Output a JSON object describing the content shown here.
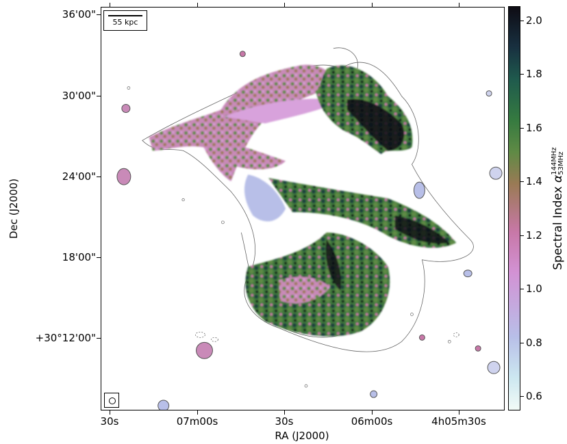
{
  "axes": {
    "xlabel": "RA (J2000)",
    "ylabel": "Dec (J2000)",
    "x_ticks": [
      "30s",
      "07m00s",
      "30s",
      "06m00s",
      "4h05m30s"
    ],
    "y_ticks": [
      "36'00\"",
      "30'00\"",
      "24'00\"",
      "18'00\"",
      "+30°12'00\""
    ]
  },
  "scalebar": {
    "label": "55 kpc"
  },
  "colorbar": {
    "label_prefix": "Spectral Index ",
    "label_symbol": "α",
    "label_sup": "144MHz",
    "label_sub": "53MHz",
    "ticks": [
      "2.0",
      "1.8",
      "1.6",
      "1.4",
      "1.2",
      "1.0",
      "0.8",
      "0.6"
    ],
    "range": [
      0.55,
      2.05
    ],
    "colors": {
      "low": "#f2fbf7",
      "lavender": "#b8bfe8",
      "pink": "#d292d4",
      "brown": "#9a7a55",
      "green": "#357a40",
      "teal": "#1f5a4d",
      "high": "#0e0c14"
    }
  }
}
